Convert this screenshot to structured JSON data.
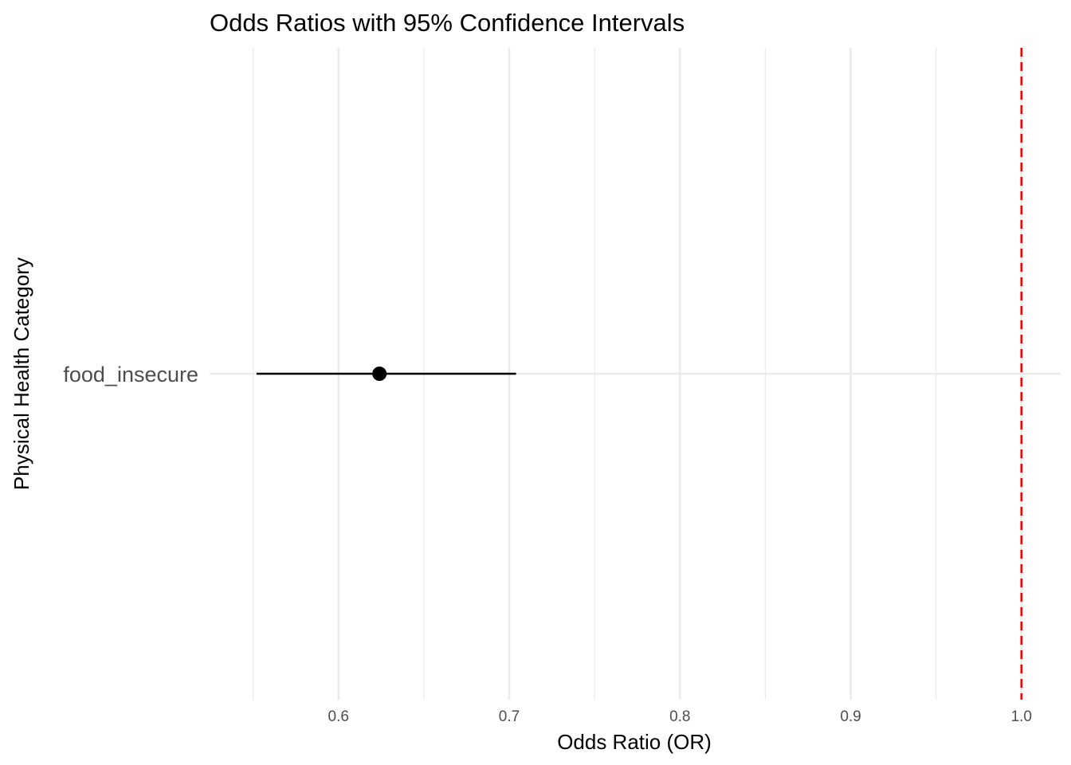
{
  "chart_data": {
    "type": "forest",
    "title": "Odds Ratios with 95% Confidence Intervals",
    "xlabel": "Odds Ratio (OR)",
    "ylabel": "Physical Health Category",
    "xlim": [
      0.5245,
      1.0225
    ],
    "x_major_ticks": [
      0.6,
      0.7,
      0.8,
      0.9,
      1.0
    ],
    "x_tick_labels": [
      "0.6",
      "0.7",
      "0.8",
      "0.9",
      "1.0"
    ],
    "x_minor_ticks": [
      0.55,
      0.65,
      0.75,
      0.85,
      0.95
    ],
    "categories": [
      "food_insecure"
    ],
    "points": [
      {
        "category": "food_insecure",
        "or": 0.624,
        "ci_low": 0.552,
        "ci_high": 0.704
      }
    ],
    "reference_line": {
      "x": 1.0,
      "style": "dashed",
      "color": "#ff0000"
    },
    "grid": true,
    "colors": {
      "point": "#000000",
      "errorbar": "#000000",
      "grid": "#ebebeb",
      "reference": "#ff0000"
    }
  }
}
